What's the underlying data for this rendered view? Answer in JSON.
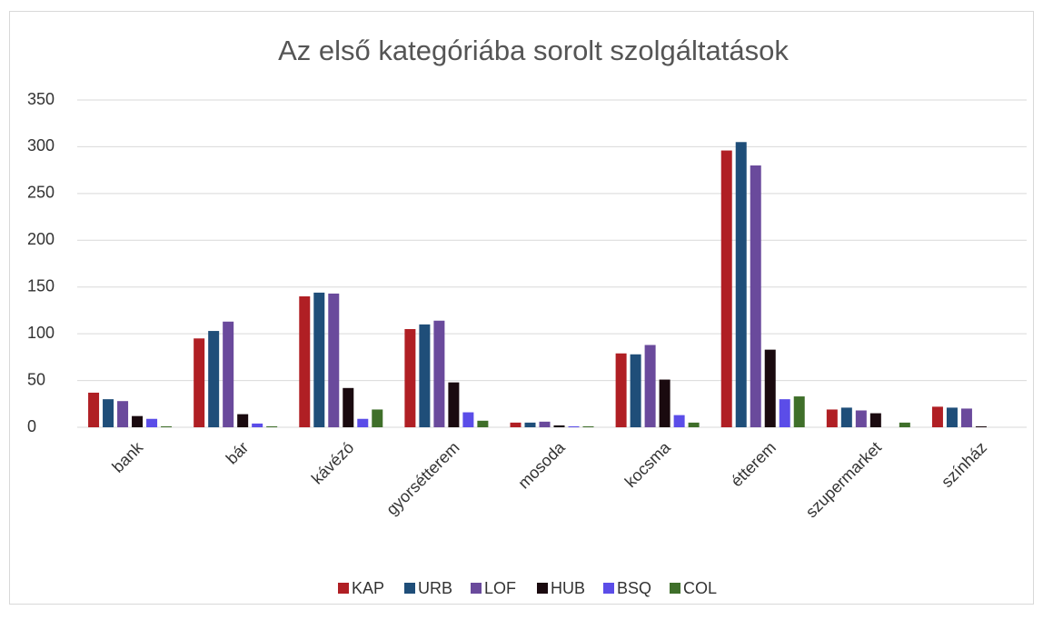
{
  "chart_data": {
    "type": "bar",
    "title": "Az első kategóriába sorolt szolgáltatások",
    "categories": [
      "bank",
      "bár",
      "kávézó",
      "gyorsétterem",
      "mosoda",
      "kocsma",
      "étterem",
      "szupermarket",
      "színház"
    ],
    "series": [
      {
        "name": "KAP",
        "color": "#b01f24",
        "values": [
          37,
          95,
          140,
          105,
          5,
          79,
          296,
          19,
          22
        ]
      },
      {
        "name": "URB",
        "color": "#1f4e79",
        "values": [
          30,
          103,
          144,
          110,
          5,
          78,
          305,
          21,
          21
        ]
      },
      {
        "name": "LOF",
        "color": "#6a4a9c",
        "values": [
          28,
          113,
          143,
          114,
          6,
          88,
          280,
          18,
          20
        ]
      },
      {
        "name": "HUB",
        "color": "#1a0a0f",
        "values": [
          12,
          14,
          42,
          48,
          2,
          51,
          83,
          15,
          1
        ]
      },
      {
        "name": "BSQ",
        "color": "#5b4de8",
        "values": [
          9,
          4,
          9,
          16,
          1,
          13,
          30,
          0,
          0
        ]
      },
      {
        "name": "COL",
        "color": "#3f6f2a",
        "values": [
          1,
          1,
          19,
          7,
          1,
          5,
          33,
          5,
          0
        ]
      }
    ],
    "ylim": [
      0,
      350
    ],
    "yticks": [
      0,
      50,
      100,
      150,
      200,
      250,
      300,
      350
    ],
    "grid": true,
    "legend": "bottom"
  }
}
